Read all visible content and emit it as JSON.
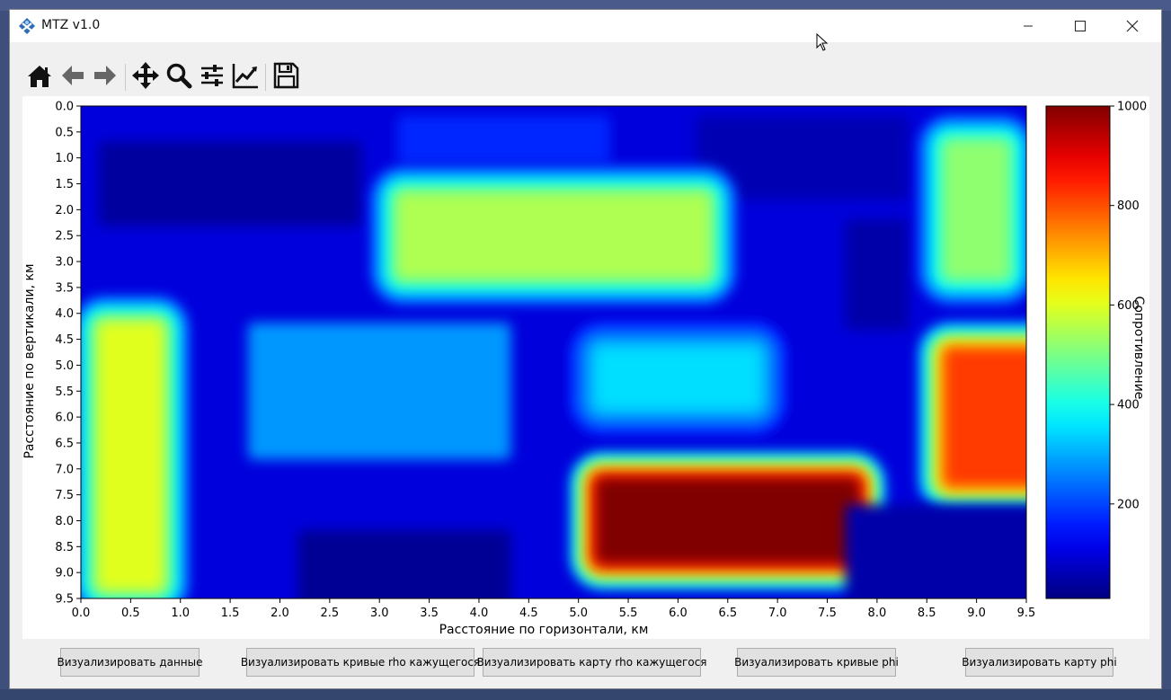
{
  "window": {
    "title": "MTZ v1.0",
    "controls": [
      "minimize",
      "maximize",
      "close"
    ]
  },
  "toolbar": {
    "buttons": [
      {
        "name": "home",
        "icon": "home-icon"
      },
      {
        "name": "back",
        "icon": "arrow-left-icon"
      },
      {
        "name": "forward",
        "icon": "arrow-right-icon"
      },
      {
        "name": "pan",
        "icon": "move-icon"
      },
      {
        "name": "zoom",
        "icon": "magnifier-icon"
      },
      {
        "name": "configure-subplots",
        "icon": "sliders-icon"
      },
      {
        "name": "edit-axis",
        "icon": "chart-line-icon"
      },
      {
        "name": "save",
        "icon": "floppy-disk-icon"
      }
    ]
  },
  "chart_data": {
    "type": "heatmap",
    "title": "",
    "xlabel": "Расстояние по горизонтали, км",
    "ylabel": "Расстояние по вертикали, км",
    "xlim": [
      0.0,
      9.5
    ],
    "ylim": [
      9.5,
      0.0
    ],
    "xticks": [
      "0.0",
      "0.5",
      "1.0",
      "1.5",
      "2.0",
      "2.5",
      "3.0",
      "3.5",
      "4.0",
      "4.5",
      "5.0",
      "5.5",
      "6.0",
      "6.5",
      "7.0",
      "7.5",
      "8.0",
      "8.5",
      "9.0",
      "9.5"
    ],
    "yticks": [
      "0.0",
      "0.5",
      "1.0",
      "1.5",
      "2.0",
      "2.5",
      "3.0",
      "3.5",
      "4.0",
      "4.5",
      "5.0",
      "5.5",
      "6.0",
      "6.5",
      "7.0",
      "7.5",
      "8.0",
      "8.5",
      "9.0",
      "9.5"
    ],
    "colormap": "jet",
    "colorbar": {
      "label": "Сопротивление",
      "range": [
        10,
        1000
      ],
      "ticks": [
        200,
        400,
        600,
        800,
        1000
      ]
    },
    "background_value": 100,
    "anomalies": [
      {
        "x": [
          0.5,
          2.5
        ],
        "y": [
          1.0,
          2.0
        ],
        "value": 40
      },
      {
        "x": [
          3.5,
          5.0
        ],
        "y": [
          0.5,
          0.8
        ],
        "value": 170
      },
      {
        "x": [
          6.5,
          8.0
        ],
        "y": [
          0.5,
          1.5
        ],
        "value": 60
      },
      {
        "x": [
          3.5,
          6.0
        ],
        "y": [
          2.0,
          3.0
        ],
        "value": 550
      },
      {
        "x": [
          8.0,
          8.0
        ],
        "y": [
          2.5,
          4.0
        ],
        "value": 50
      },
      {
        "x": [
          9.0,
          9.0
        ],
        "y": [
          1.0,
          3.0
        ],
        "value": 520
      },
      {
        "x": [
          0.5,
          0.5
        ],
        "y": [
          4.5,
          9.0
        ],
        "value": 600
      },
      {
        "x": [
          2.0,
          4.0
        ],
        "y": [
          4.5,
          6.5
        ],
        "value": 280
      },
      {
        "x": [
          5.5,
          6.5
        ],
        "y": [
          5.0,
          5.5
        ],
        "value": 350
      },
      {
        "x": [
          9.0,
          9.5
        ],
        "y": [
          5.0,
          7.0
        ],
        "value": 820
      },
      {
        "x": [
          5.5,
          7.5
        ],
        "y": [
          7.5,
          8.5
        ],
        "value": 1000
      },
      {
        "x": [
          2.5,
          4.0
        ],
        "y": [
          8.5,
          9.5
        ],
        "value": 30
      },
      {
        "x": [
          8.0,
          9.5
        ],
        "y": [
          8.0,
          9.5
        ],
        "value": 50
      }
    ],
    "colors": {
      "background": "#0000ff",
      "low": "#00008b",
      "high": "#800000"
    }
  },
  "buttons": [
    {
      "label": "Визуализировать данные"
    },
    {
      "label": "Визуализировать кривые rho кажущегося"
    },
    {
      "label": "Визуализировать карту rho кажущегося"
    },
    {
      "label": "Визуализировать кривые phi"
    },
    {
      "label": "Визуализировать карту phi"
    }
  ]
}
